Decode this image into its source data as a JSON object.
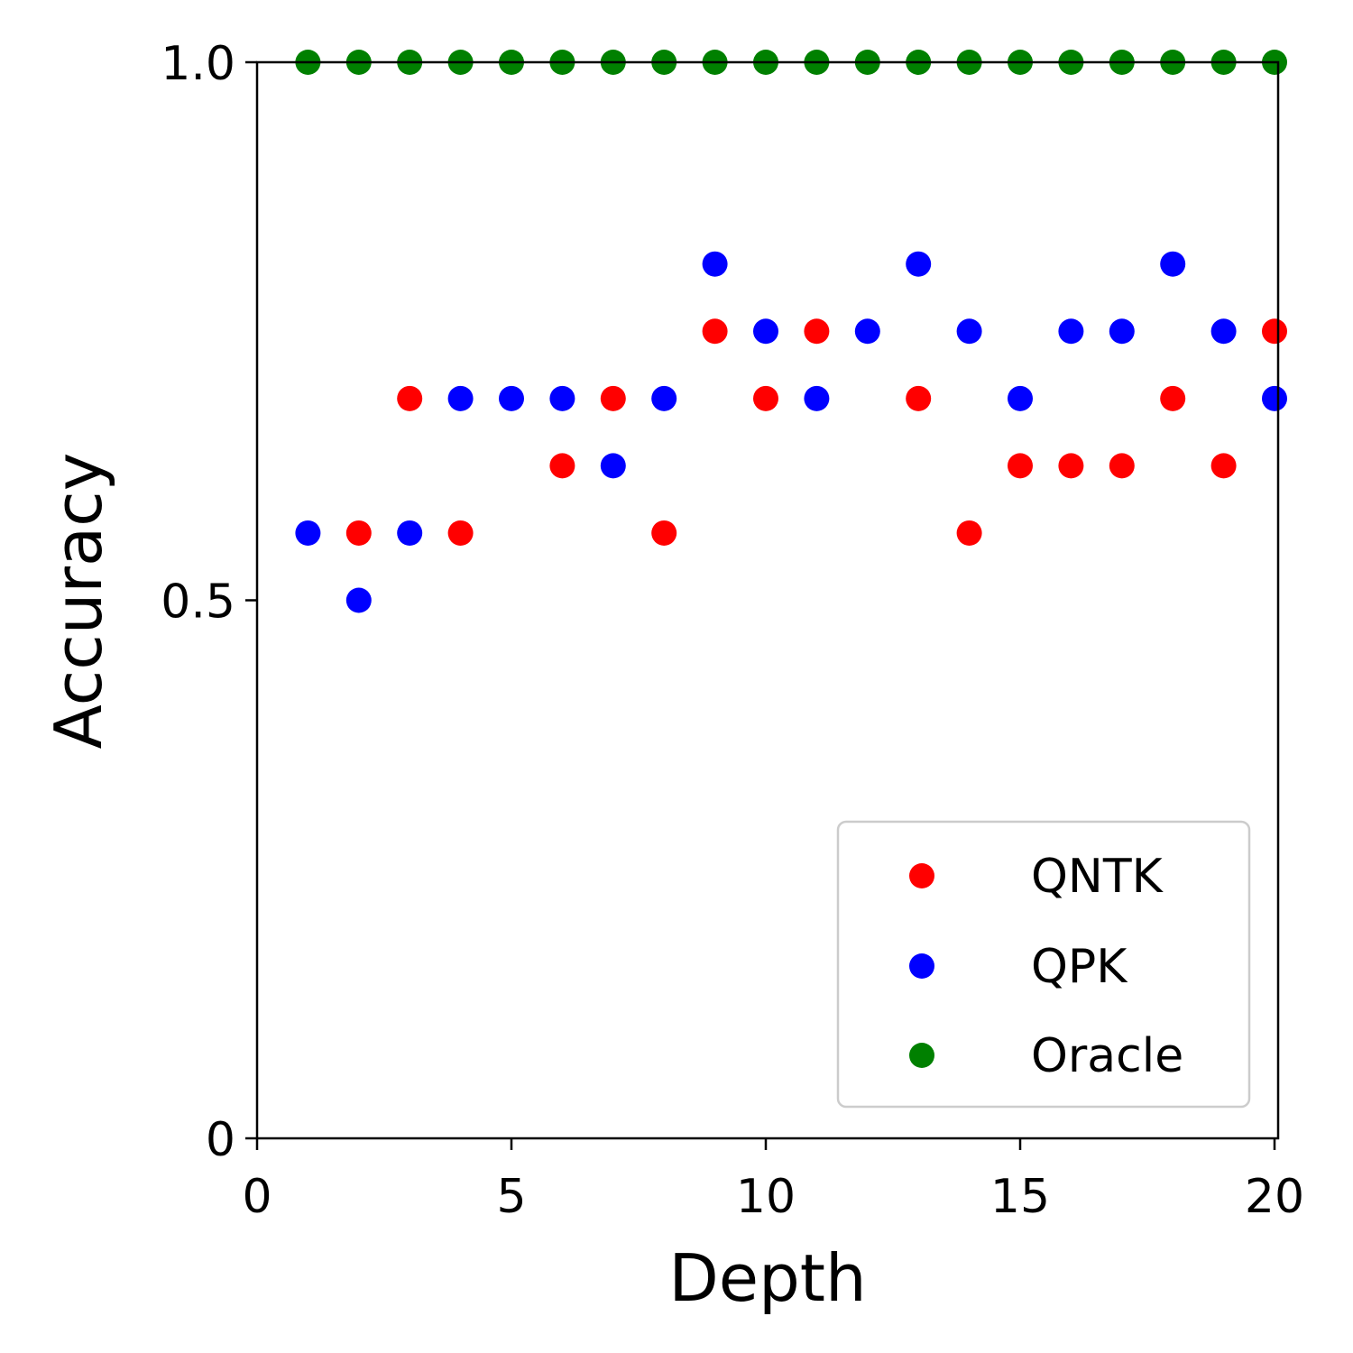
{
  "chart_data": {
    "type": "scatter",
    "title": "",
    "xlabel": "Depth",
    "ylabel": "Accuracy",
    "xlim": [
      0,
      20
    ],
    "ylim": [
      0,
      1
    ],
    "xticks": [
      0,
      5,
      10,
      15,
      20
    ],
    "xtick_labels": [
      "0",
      "5",
      "10",
      "15",
      "20"
    ],
    "yticks": [
      0,
      0.5,
      1
    ],
    "ytick_labels": [
      "0",
      "0.5",
      "1.0"
    ],
    "grid": false,
    "legend_position": "bottom-right",
    "series": [
      {
        "name": "QNTK",
        "color": "#ff0000",
        "x": [
          2,
          3,
          4,
          6,
          7,
          8,
          9,
          10,
          11,
          13,
          14,
          15,
          16,
          17,
          18,
          19,
          20
        ],
        "y": [
          0.5625,
          0.6875,
          0.5625,
          0.625,
          0.6875,
          0.5625,
          0.75,
          0.6875,
          0.75,
          0.6875,
          0.5625,
          0.625,
          0.625,
          0.625,
          0.6875,
          0.625,
          0.75
        ]
      },
      {
        "name": "QPK",
        "color": "#0000ff",
        "x": [
          1,
          2,
          3,
          4,
          5,
          6,
          7,
          8,
          9,
          10,
          11,
          12,
          13,
          14,
          15,
          16,
          17,
          18,
          19,
          20
        ],
        "y": [
          0.5625,
          0.5,
          0.5625,
          0.6875,
          0.6875,
          0.6875,
          0.625,
          0.6875,
          0.8125,
          0.75,
          0.6875,
          0.75,
          0.8125,
          0.75,
          0.6875,
          0.75,
          0.75,
          0.8125,
          0.75,
          0.6875
        ]
      },
      {
        "name": "Oracle",
        "color": "#008000",
        "x": [
          1,
          2,
          3,
          4,
          5,
          6,
          7,
          8,
          9,
          10,
          11,
          12,
          13,
          14,
          15,
          16,
          17,
          18,
          19,
          20
        ],
        "y": [
          1,
          1,
          1,
          1,
          1,
          1,
          1,
          1,
          1,
          1,
          1,
          1,
          1,
          1,
          1,
          1,
          1,
          1,
          1,
          1
        ]
      }
    ]
  }
}
